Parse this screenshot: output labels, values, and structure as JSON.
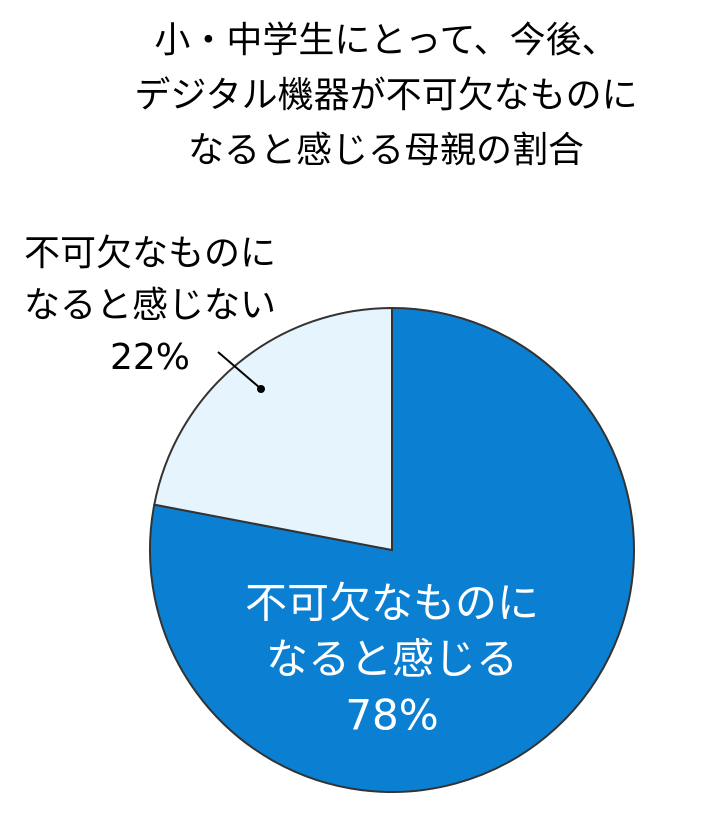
{
  "chart_data": {
    "type": "pie",
    "title": [
      "小・中学生にとって、今後、",
      "デジタル機器が不可欠なものに",
      "なると感じる母親の割合"
    ],
    "categories": [
      [
        "不可欠なものに",
        "なると感じる"
      ],
      [
        "不可欠なものに",
        "なると感じない"
      ]
    ],
    "values": [
      78,
      22
    ],
    "value_labels": [
      "78%",
      "22%"
    ],
    "colors": [
      "#0b80d2",
      "#e6f5fd"
    ]
  }
}
